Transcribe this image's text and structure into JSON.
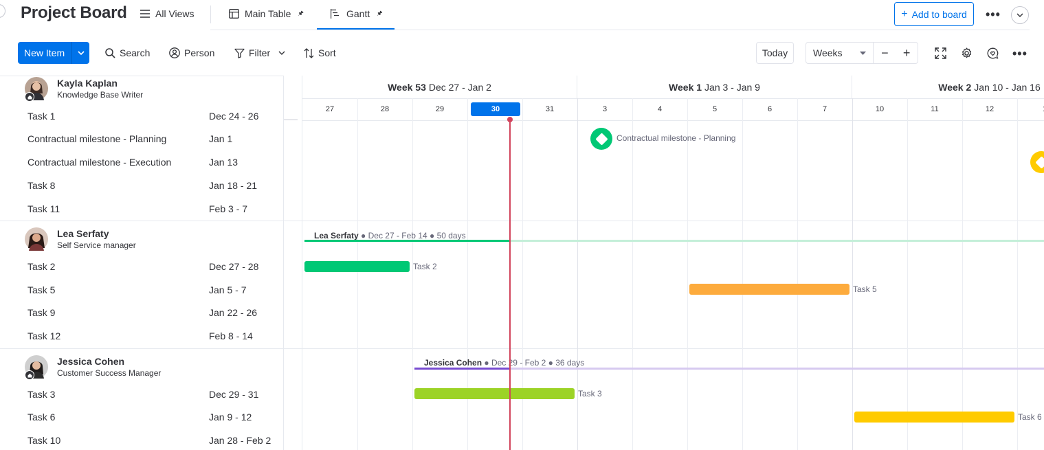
{
  "header": {
    "board_title": "Project Board",
    "views": [
      {
        "label": "All Views",
        "icon": "hamburger-icon"
      },
      {
        "label": "Main Table",
        "icon": "table-icon",
        "pin": "🖈"
      },
      {
        "label": "Gantt",
        "icon": "gantt-icon",
        "pin": "🖈"
      }
    ],
    "add_to_board": "Add to board",
    "more": "•••"
  },
  "toolbar": {
    "new_item": "New Item",
    "search": "Search",
    "person": "Person",
    "filter": "Filter",
    "sort": "Sort",
    "today": "Today",
    "zoom_value": "Weeks",
    "zoom_out": "−",
    "zoom_in": "+",
    "more": "•••"
  },
  "gantt": {
    "weeks": [
      {
        "name": "Week 53",
        "range": "Dec 27 - Jan 2"
      },
      {
        "name": "Week 1",
        "range": "Jan 3 - Jan 9"
      },
      {
        "name": "Week 2",
        "range": "Jan 10 - Jan 16"
      }
    ],
    "days": [
      "27",
      "28",
      "29",
      "30",
      "31",
      "3",
      "4",
      "5",
      "6",
      "7",
      "10",
      "11",
      "12",
      "1"
    ],
    "today_day": "30",
    "colors": {
      "accent": "#0073ea",
      "today_line": "#d2445c",
      "green": "#00c875",
      "orange": "#fdab3d",
      "lime": "#9cd326",
      "yellow": "#ffcb00",
      "purple": "#784bd1",
      "milestone_yellow": "#ffcb00"
    }
  },
  "groups": [
    {
      "name": "Kayla Kaplan",
      "role": "Knowledge Base Writer",
      "tasks": [
        {
          "name": "Task 1",
          "date": "Dec 24 - 26"
        },
        {
          "name": "Contractual milestone - Planning",
          "date": "Jan 1"
        },
        {
          "name": "Contractual milestone - Execution",
          "date": "Jan 13"
        },
        {
          "name": "Task 8",
          "date": "Jan 18 - 21"
        },
        {
          "name": "Task 11",
          "date": "Feb 3 - 7"
        }
      ],
      "milestone_label": "Contractual milestone - Planning"
    },
    {
      "name": "Lea Serfaty",
      "role": "Self Service manager",
      "summary": {
        "name": "Lea Serfaty",
        "range": " ● Dec 27 - Feb 14 ● 50 days"
      },
      "tasks": [
        {
          "name": "Task 2",
          "date": "Dec 27 - 28"
        },
        {
          "name": "Task 5",
          "date": "Jan 5 - 7"
        },
        {
          "name": "Task 9",
          "date": "Jan 22 - 26"
        },
        {
          "name": "Task 12",
          "date": "Feb 8 - 14"
        }
      ],
      "bar_labels": [
        "Task 2",
        "Task 5"
      ]
    },
    {
      "name": "Jessica Cohen",
      "role": "Customer Success Manager",
      "summary": {
        "name": "Jessica Cohen",
        "range": " ● Dec 29 - Feb 2 ● 36 days"
      },
      "tasks": [
        {
          "name": "Task 3",
          "date": "Dec 29 - 31"
        },
        {
          "name": "Task 6",
          "date": "Jan 9 - 12"
        },
        {
          "name": "Task 10",
          "date": "Jan 28 - Feb 2"
        }
      ],
      "bar_labels": [
        "Task 3",
        "Task 6"
      ]
    }
  ]
}
